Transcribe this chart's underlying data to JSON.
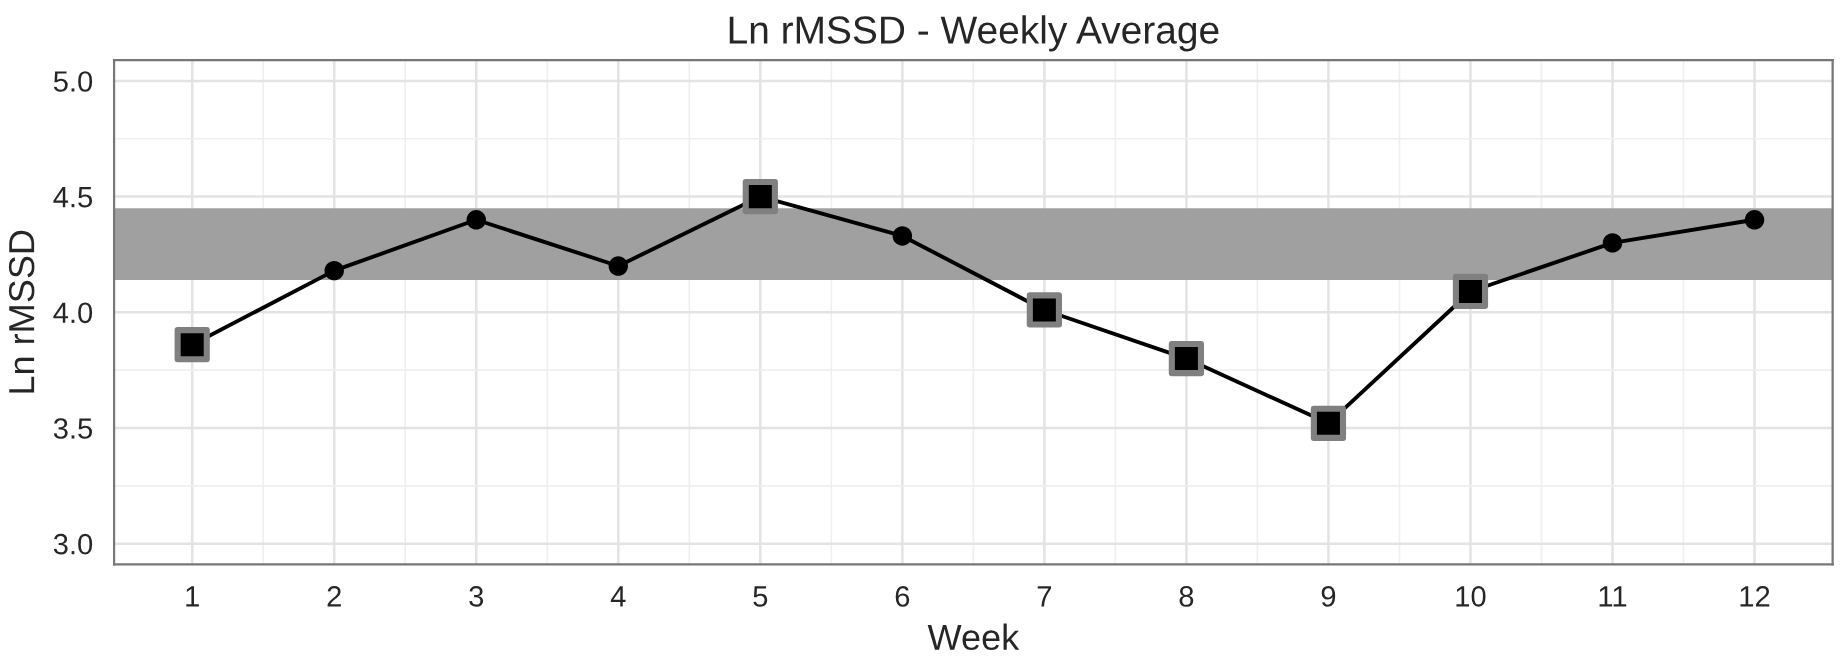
{
  "chart_data": {
    "type": "line",
    "title": "Ln rMSSD - Weekly Average",
    "xlabel": "Week",
    "ylabel": "Ln rMSSD",
    "x": [
      1,
      2,
      3,
      4,
      5,
      6,
      7,
      8,
      9,
      10,
      11,
      12
    ],
    "series": [
      {
        "color": "#000000",
        "marker": "circle",
        "line_style": "solid",
        "values": [
          3.86,
          4.18,
          4.4,
          4.2,
          4.5,
          4.33,
          4.01,
          3.8,
          3.52,
          4.09,
          4.3,
          4.4
        ]
      },
      {
        "type": "scatter",
        "color": "#000000",
        "marker": "square",
        "values": [
          3.86,
          null,
          null,
          null,
          4.5,
          null,
          4.01,
          3.8,
          3.52,
          4.09,
          null,
          null
        ]
      }
    ],
    "bands": [
      {
        "axis": "y",
        "from": 4.14,
        "to": 4.45,
        "color": "#a0a0a0"
      }
    ],
    "xlim": [
      0.45,
      12.55
    ],
    "xticks": [
      1,
      2,
      3,
      4,
      5,
      6,
      7,
      8,
      9,
      10,
      11,
      12
    ],
    "ylim": [
      2.91,
      5.09
    ],
    "yticks": [
      {
        "value": 3.0,
        "label": "3.0"
      },
      {
        "value": 3.5,
        "label": "3.5"
      },
      {
        "value": 4.0,
        "label": "4.0"
      },
      {
        "value": 4.5,
        "label": "4.5"
      },
      {
        "value": 5.0,
        "label": "5.0"
      }
    ],
    "grid": true,
    "legend": false
  }
}
